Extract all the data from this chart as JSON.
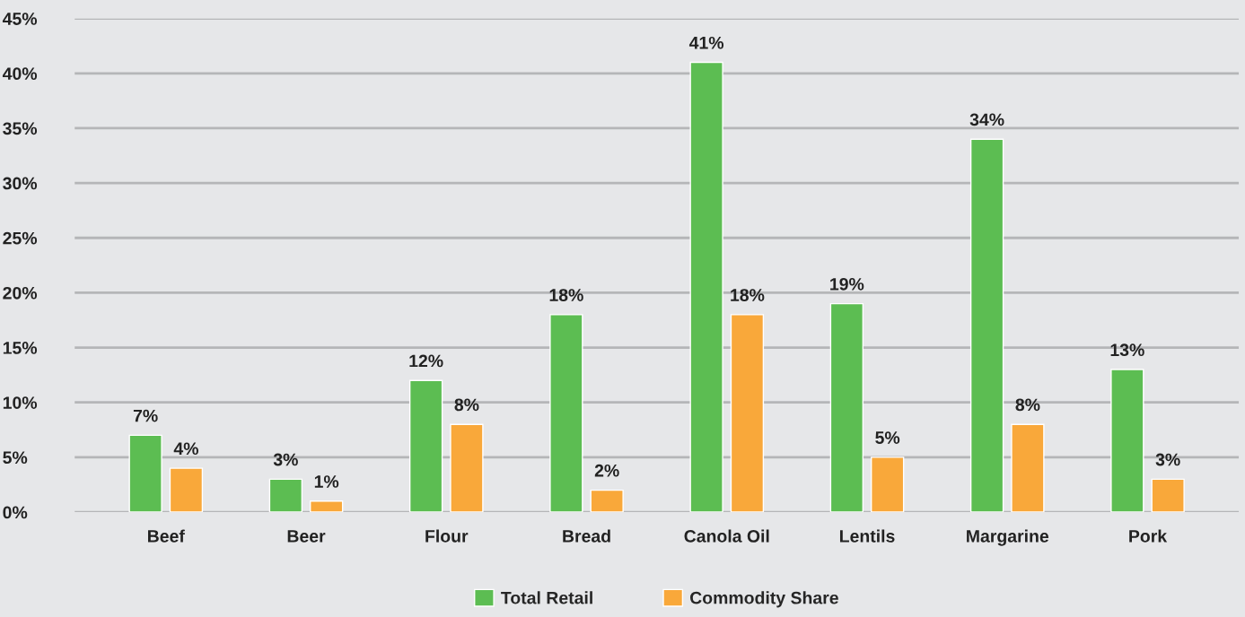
{
  "chart_data": {
    "type": "bar",
    "categories": [
      "Beef",
      "Beer",
      "Flour",
      "Bread",
      "Canola Oil",
      "Lentils",
      "Margarine",
      "Pork"
    ],
    "series": [
      {
        "name": "Total Retail",
        "color": "#5cbd52",
        "values": [
          7,
          3,
          12,
          18,
          41,
          19,
          34,
          13
        ],
        "value_labels": [
          "7%",
          "3%",
          "12%",
          "18%",
          "41%",
          "19%",
          "34%",
          "13%"
        ]
      },
      {
        "name": "Commodity Share",
        "color": "#f9a83a",
        "values": [
          4,
          1,
          8,
          2,
          18,
          5,
          8,
          3
        ],
        "value_labels": [
          "4%",
          "1%",
          "8%",
          "2%",
          "18%",
          "5%",
          "8%",
          "3%"
        ]
      }
    ],
    "ylim": [
      0,
      45
    ],
    "yticks": [
      {
        "value": 0,
        "label": "0%"
      },
      {
        "value": 5,
        "label": "5%"
      },
      {
        "value": 10,
        "label": "10%"
      },
      {
        "value": 15,
        "label": "15%"
      },
      {
        "value": 20,
        "label": "20%"
      },
      {
        "value": 25,
        "label": "25%"
      },
      {
        "value": 30,
        "label": "30%"
      },
      {
        "value": 35,
        "label": "35%"
      },
      {
        "value": 40,
        "label": "40%"
      },
      {
        "value": 45,
        "label": "45%"
      }
    ],
    "grid": "y",
    "legend": "bottom"
  }
}
